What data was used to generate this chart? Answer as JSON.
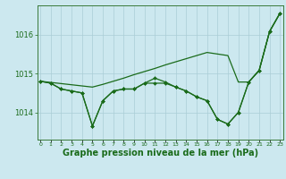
{
  "xlabel": "Graphe pression niveau de la mer (hPa)",
  "hours": [
    0,
    1,
    2,
    3,
    4,
    5,
    6,
    7,
    8,
    9,
    10,
    11,
    12,
    13,
    14,
    15,
    16,
    17,
    18,
    19,
    20,
    21,
    22,
    23
  ],
  "sweep_y": [
    1014.8,
    1014.77,
    1014.74,
    1014.71,
    1014.68,
    1014.65,
    1014.72,
    1014.8,
    1014.88,
    1014.97,
    1015.05,
    1015.13,
    1015.22,
    1015.3,
    1015.38,
    1015.46,
    1015.54,
    1015.5,
    1015.46,
    1014.78,
    1014.78,
    1015.08,
    1016.08,
    1016.55
  ],
  "main_y": [
    1014.8,
    1014.75,
    1014.6,
    1014.55,
    1014.5,
    1013.65,
    1014.3,
    1014.55,
    1014.6,
    1014.6,
    1014.75,
    1014.88,
    1014.78,
    1014.65,
    1014.55,
    1014.4,
    1014.3,
    1013.82,
    1013.7,
    1014.0,
    1014.78,
    1015.08,
    1016.08,
    1016.55
  ],
  "ref_y": [
    1014.8,
    1014.75,
    1014.6,
    1014.55,
    1014.5,
    1013.65,
    1014.3,
    1014.55,
    1014.6,
    1014.6,
    1014.75,
    1014.75,
    1014.75,
    1014.65,
    1014.55,
    1014.4,
    1014.3,
    1013.82,
    1013.7,
    1014.0,
    1014.78,
    1015.08,
    1016.08,
    1016.55
  ],
  "ylim": [
    1013.3,
    1016.75
  ],
  "xlim": [
    -0.3,
    23.3
  ],
  "yticks": [
    1014,
    1015,
    1016
  ],
  "bg_color": "#cce8ef",
  "grid_color": "#aacdd6",
  "line_color": "#1a6b1a",
  "marker_color": "#1a6b1a"
}
